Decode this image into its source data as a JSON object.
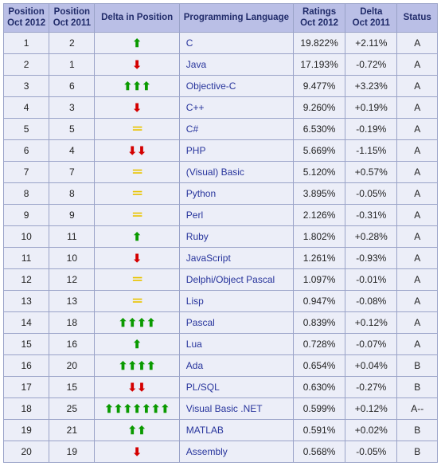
{
  "headers": {
    "pos2012": "Position\nOct 2012",
    "pos2011": "Position\nOct 2011",
    "delta": "Delta in Position",
    "lang": "Programming Language",
    "ratings": "Ratings\nOct 2012",
    "deltaRatings": "Delta\nOct 2011",
    "status": "Status"
  },
  "arrow_glyphs": {
    "up": "⬆",
    "down": "⬇",
    "same": "＝"
  },
  "colors": {
    "header_bg": "#babfe6",
    "header_text": "#212c6a",
    "cell_bg": "#eceef8",
    "border": "#9aa3c8",
    "lang_text": "#27349c",
    "arrow_up": "#0a9a00",
    "arrow_down": "#d40000",
    "arrow_same": "#e9c400"
  },
  "rows": [
    {
      "p12": "1",
      "p11": "2",
      "dir": "up",
      "cnt": 1,
      "lang": "C",
      "rat": "19.822%",
      "drat": "+2.11%",
      "st": "A"
    },
    {
      "p12": "2",
      "p11": "1",
      "dir": "down",
      "cnt": 1,
      "lang": "Java",
      "rat": "17.193%",
      "drat": "-0.72%",
      "st": "A"
    },
    {
      "p12": "3",
      "p11": "6",
      "dir": "up",
      "cnt": 3,
      "lang": "Objective-C",
      "rat": "9.477%",
      "drat": "+3.23%",
      "st": "A"
    },
    {
      "p12": "4",
      "p11": "3",
      "dir": "down",
      "cnt": 1,
      "lang": "C++",
      "rat": "9.260%",
      "drat": "+0.19%",
      "st": "A"
    },
    {
      "p12": "5",
      "p11": "5",
      "dir": "same",
      "cnt": 1,
      "lang": "C#",
      "rat": "6.530%",
      "drat": "-0.19%",
      "st": "A"
    },
    {
      "p12": "6",
      "p11": "4",
      "dir": "down",
      "cnt": 2,
      "lang": "PHP",
      "rat": "5.669%",
      "drat": "-1.15%",
      "st": "A"
    },
    {
      "p12": "7",
      "p11": "7",
      "dir": "same",
      "cnt": 1,
      "lang": "(Visual) Basic",
      "rat": "5.120%",
      "drat": "+0.57%",
      "st": "A"
    },
    {
      "p12": "8",
      "p11": "8",
      "dir": "same",
      "cnt": 1,
      "lang": "Python",
      "rat": "3.895%",
      "drat": "-0.05%",
      "st": "A"
    },
    {
      "p12": "9",
      "p11": "9",
      "dir": "same",
      "cnt": 1,
      "lang": "Perl",
      "rat": "2.126%",
      "drat": "-0.31%",
      "st": "A"
    },
    {
      "p12": "10",
      "p11": "11",
      "dir": "up",
      "cnt": 1,
      "lang": "Ruby",
      "rat": "1.802%",
      "drat": "+0.28%",
      "st": "A"
    },
    {
      "p12": "11",
      "p11": "10",
      "dir": "down",
      "cnt": 1,
      "lang": "JavaScript",
      "rat": "1.261%",
      "drat": "-0.93%",
      "st": "A"
    },
    {
      "p12": "12",
      "p11": "12",
      "dir": "same",
      "cnt": 1,
      "lang": "Delphi/Object Pascal",
      "rat": "1.097%",
      "drat": "-0.01%",
      "st": "A"
    },
    {
      "p12": "13",
      "p11": "13",
      "dir": "same",
      "cnt": 1,
      "lang": "Lisp",
      "rat": "0.947%",
      "drat": "-0.08%",
      "st": "A"
    },
    {
      "p12": "14",
      "p11": "18",
      "dir": "up",
      "cnt": 4,
      "lang": "Pascal",
      "rat": "0.839%",
      "drat": "+0.12%",
      "st": "A"
    },
    {
      "p12": "15",
      "p11": "16",
      "dir": "up",
      "cnt": 1,
      "lang": "Lua",
      "rat": "0.728%",
      "drat": "-0.07%",
      "st": "A"
    },
    {
      "p12": "16",
      "p11": "20",
      "dir": "up",
      "cnt": 4,
      "lang": "Ada",
      "rat": "0.654%",
      "drat": "+0.04%",
      "st": "B"
    },
    {
      "p12": "17",
      "p11": "15",
      "dir": "down",
      "cnt": 2,
      "lang": "PL/SQL",
      "rat": "0.630%",
      "drat": "-0.27%",
      "st": "B"
    },
    {
      "p12": "18",
      "p11": "25",
      "dir": "up",
      "cnt": 7,
      "lang": "Visual Basic .NET",
      "rat": "0.599%",
      "drat": "+0.12%",
      "st": "A--"
    },
    {
      "p12": "19",
      "p11": "21",
      "dir": "up",
      "cnt": 2,
      "lang": "MATLAB",
      "rat": "0.591%",
      "drat": "+0.02%",
      "st": "B"
    },
    {
      "p12": "20",
      "p11": "19",
      "dir": "down",
      "cnt": 1,
      "lang": "Assembly",
      "rat": "0.568%",
      "drat": "-0.05%",
      "st": "B"
    }
  ]
}
